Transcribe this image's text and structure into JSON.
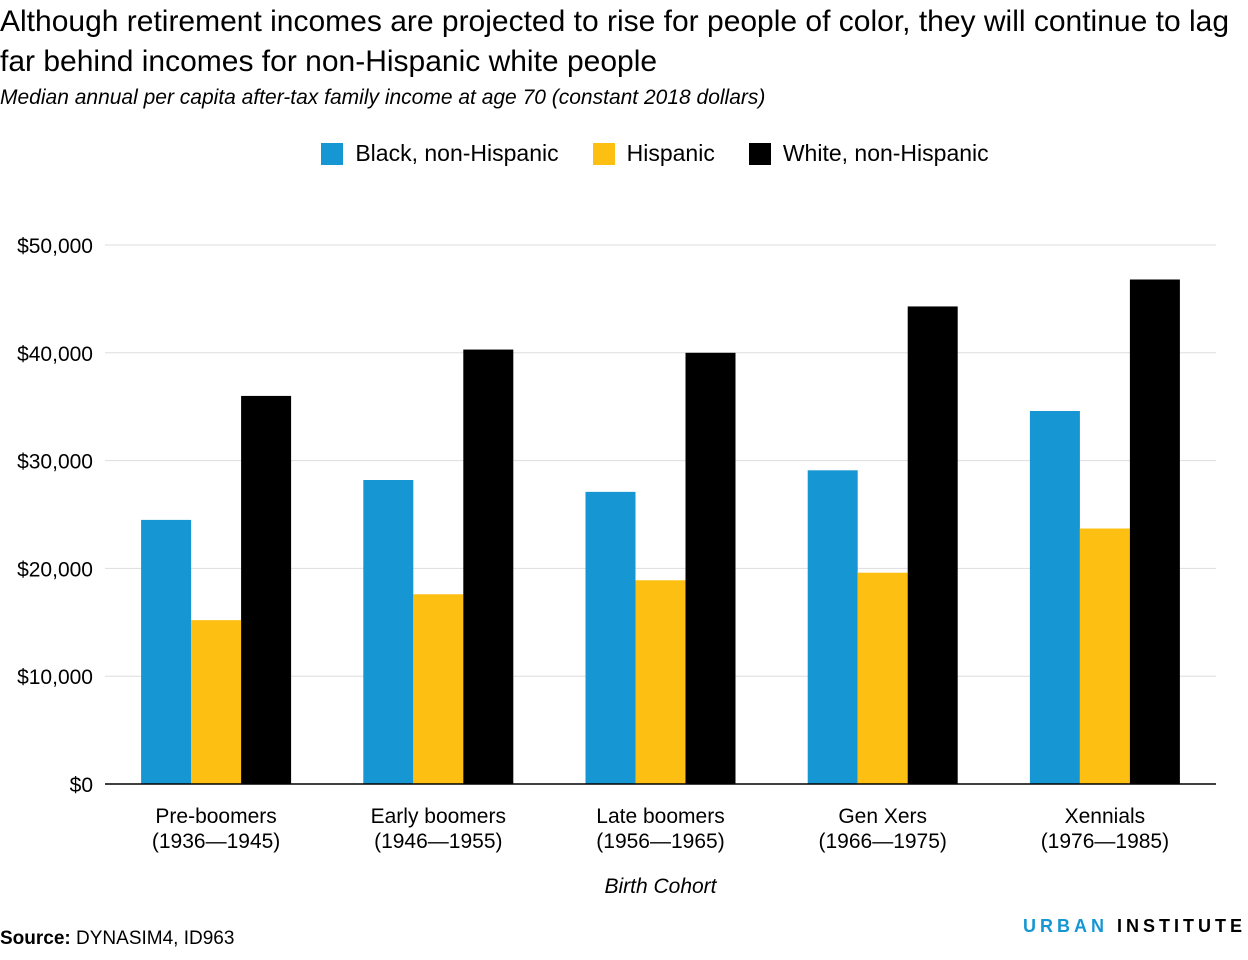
{
  "title": "Although retirement incomes are projected to rise for people of color, they will continue to lag far behind incomes for non-Hispanic white people",
  "subtitle": "Median annual per capita after-tax family income at age 70 (constant 2018 dollars)",
  "source_label": "Source:",
  "source_text": "DYNASIM4, ID963",
  "logo": {
    "part1": "URBAN",
    "part2": "INSTITUTE"
  },
  "colors": {
    "black_nh": "#1696d2",
    "hispanic": "#fdbf11",
    "white_nh": "#000000",
    "grid": "#dddddd",
    "axis": "#000000"
  },
  "chart_data": {
    "type": "bar",
    "title": "Although retirement incomes are projected to rise for people of color, they will continue to lag far behind incomes for non-Hispanic white people",
    "subtitle": "Median annual per capita after-tax family income at age 70 (constant 2018 dollars)",
    "xlabel": "Birth Cohort",
    "ylabel": "",
    "ylim": [
      0,
      50000
    ],
    "yticks": [
      0,
      10000,
      20000,
      30000,
      40000,
      50000
    ],
    "ytick_labels": [
      "$0",
      "$10,000",
      "$20,000",
      "$30,000",
      "$40,000",
      "$50,000"
    ],
    "grid": true,
    "legend_position": "top-center",
    "categories": [
      [
        "Pre-boomers",
        "(1936—1945)"
      ],
      [
        "Early boomers",
        "(1946—1955)"
      ],
      [
        "Late boomers",
        "(1956—1965)"
      ],
      [
        "Gen Xers",
        "(1966—1975)"
      ],
      [
        "Xennials",
        "(1976—1985)"
      ]
    ],
    "series": [
      {
        "name": "Black, non-Hispanic",
        "color": "#1696d2",
        "values": [
          24500,
          28200,
          27100,
          29100,
          34600
        ]
      },
      {
        "name": "Hispanic",
        "color": "#fdbf11",
        "values": [
          15200,
          17600,
          18900,
          19600,
          23700
        ]
      },
      {
        "name": "White, non-Hispanic",
        "color": "#000000",
        "values": [
          36000,
          40300,
          40000,
          44300,
          46800
        ]
      }
    ]
  }
}
